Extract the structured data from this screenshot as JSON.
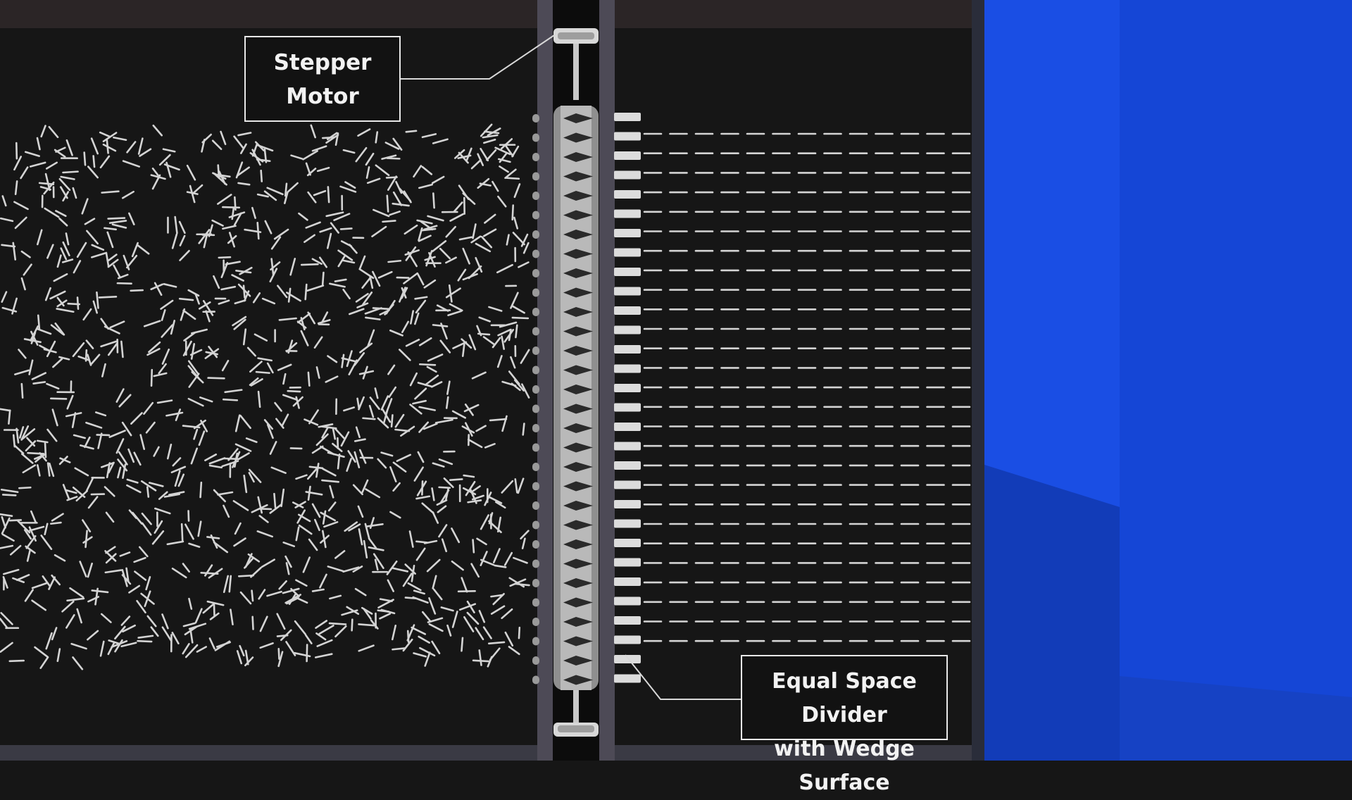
{
  "labels": {
    "stepper_motor": {
      "line1": "Stepper",
      "line2": "Motor"
    },
    "divider": {
      "line1": "Equal Space Divider",
      "line2": "with Wedge Surface"
    }
  },
  "colors": {
    "background": "#161616",
    "rails": "#4d4a56",
    "top_beam": "#2b2526",
    "shaft": "#b9b9b9",
    "particles": "#d4d4d4",
    "blue_panel": "#1546d6",
    "callout_border": "#e8e8e8"
  }
}
